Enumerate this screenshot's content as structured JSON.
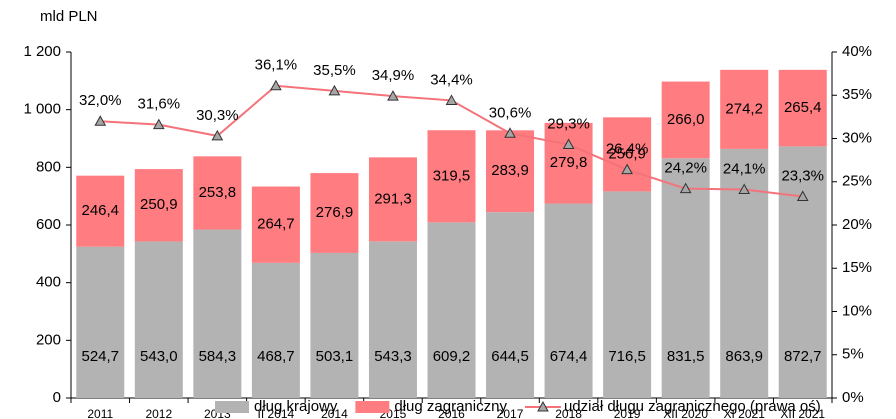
{
  "chart_data": {
    "type": "bar",
    "y_unit_label": "mld PLN",
    "categories": [
      "2011",
      "2012",
      "2013",
      "II 2014",
      "2014",
      "2015",
      "2016",
      "2017",
      "2018",
      "2019",
      "XII 2020",
      "XI 2021",
      "XII 2021"
    ],
    "series": [
      {
        "name": "dług krajowy",
        "color": "#b3b3b3",
        "values": [
          524.7,
          543.0,
          584.3,
          468.7,
          503.1,
          543.3,
          609.2,
          644.5,
          674.4,
          716.5,
          831.5,
          863.9,
          872.7
        ],
        "value_labels": [
          "524,7",
          "543,0",
          "584,3",
          "468,7",
          "503,1",
          "543,3",
          "609,2",
          "644,5",
          "674,4",
          "716,5",
          "831,5",
          "863,9",
          "872,7"
        ]
      },
      {
        "name": "dług zagraniczny",
        "color": "#ff7c80",
        "values": [
          246.4,
          250.9,
          253.8,
          264.7,
          276.9,
          291.3,
          319.5,
          283.9,
          279.8,
          256.9,
          266.0,
          274.2,
          265.4
        ],
        "value_labels": [
          "246,4",
          "250,9",
          "253,8",
          "264,7",
          "276,9",
          "291,3",
          "319,5",
          "283,9",
          "279,8",
          "256,9",
          "266,0",
          "274,2",
          "265,4"
        ]
      },
      {
        "name": "udział długu zagranicznego (prawa oś)",
        "type": "line",
        "axis": "y2",
        "color": "#f4737a",
        "marker_color": "#a6a6a6",
        "values": [
          32.0,
          31.6,
          30.3,
          36.1,
          35.5,
          34.9,
          34.4,
          30.6,
          29.3,
          26.4,
          24.2,
          24.1,
          23.3
        ],
        "value_labels": [
          "32,0%",
          "31,6%",
          "30,3%",
          "36,1%",
          "35,5%",
          "34,9%",
          "34,4%",
          "30,6%",
          "29,3%",
          "26,4%",
          "24,2%",
          "24,1%",
          "23,3%"
        ]
      }
    ],
    "ylim": [
      0,
      1200
    ],
    "yticks": [
      0,
      200,
      400,
      600,
      800,
      {
        "value": 1000,
        "label": "1 000"
      },
      {
        "value": 1200,
        "label": "1 200"
      }
    ],
    "y2lim": [
      0,
      40
    ],
    "y2ticks": [
      {
        "value": 0,
        "label": "0%"
      },
      {
        "value": 5,
        "label": "5%"
      },
      {
        "value": 10,
        "label": "10%"
      },
      {
        "value": 15,
        "label": "15%"
      },
      {
        "value": 20,
        "label": "20%"
      },
      {
        "value": 25,
        "label": "25%"
      },
      {
        "value": 30,
        "label": "30%"
      },
      {
        "value": 35,
        "label": "35%"
      },
      {
        "value": 40,
        "label": "40%"
      }
    ]
  }
}
